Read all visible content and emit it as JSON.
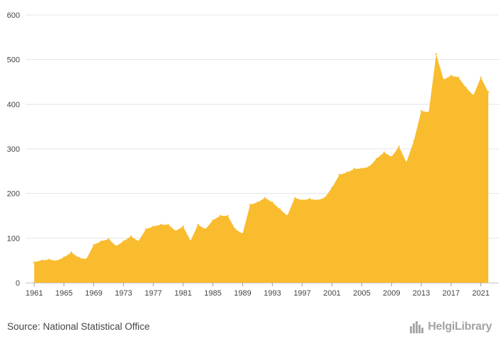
{
  "chart_data": {
    "type": "area",
    "title": "",
    "xlabel": "",
    "ylabel": "",
    "ylim": [
      0,
      600
    ],
    "yticks": [
      0,
      100,
      200,
      300,
      400,
      500,
      600
    ],
    "xticks": [
      1961,
      1965,
      1969,
      1973,
      1977,
      1981,
      1985,
      1989,
      1993,
      1997,
      2001,
      2005,
      2009,
      2013,
      2017,
      2021
    ],
    "grid": true,
    "color": "#f9bc2f",
    "x": [
      1961,
      1962,
      1963,
      1964,
      1965,
      1966,
      1967,
      1968,
      1969,
      1970,
      1971,
      1972,
      1973,
      1974,
      1975,
      1976,
      1977,
      1978,
      1979,
      1980,
      1981,
      1982,
      1983,
      1984,
      1985,
      1986,
      1987,
      1988,
      1989,
      1990,
      1991,
      1992,
      1993,
      1994,
      1995,
      1996,
      1997,
      1998,
      1999,
      2000,
      2001,
      2002,
      2003,
      2004,
      2005,
      2006,
      2007,
      2008,
      2009,
      2010,
      2011,
      2012,
      2013,
      2014,
      2015,
      2016,
      2017,
      2018,
      2019,
      2020,
      2021,
      2022
    ],
    "values": [
      46,
      50,
      52,
      49,
      57,
      68,
      56,
      53,
      85,
      93,
      98,
      82,
      93,
      104,
      93,
      120,
      126,
      130,
      130,
      116,
      126,
      94,
      130,
      120,
      140,
      150,
      150,
      120,
      110,
      175,
      180,
      190,
      180,
      165,
      150,
      190,
      185,
      188,
      185,
      190,
      213,
      242,
      247,
      255,
      256,
      260,
      278,
      292,
      282,
      305,
      270,
      318,
      385,
      382,
      512,
      455,
      464,
      460,
      437,
      420,
      460,
      427
    ]
  },
  "footer": {
    "source": "Source: National Statistical Office",
    "logo": "HelgiLibrary",
    "logo_icon": "bar-chart-city-icon"
  }
}
